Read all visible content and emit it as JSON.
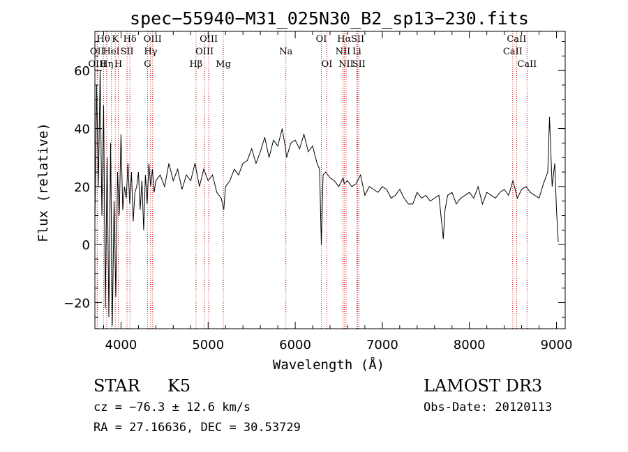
{
  "chart_data": {
    "type": "line",
    "title": "spec−55940−M31_025N30_B2_sp13−230.fits",
    "xlabel": "Wavelength (Å)",
    "ylabel": "Flux (relative)",
    "xlim": [
      3700,
      9100
    ],
    "ylim": [
      -29,
      73.5
    ],
    "x_ticks": [
      4000,
      5000,
      6000,
      7000,
      8000,
      9000
    ],
    "y_ticks": [
      -20,
      0,
      20,
      40,
      60
    ],
    "y_tick_labels": [
      "−20",
      "0",
      "20",
      "40",
      "60"
    ],
    "series": [
      {
        "name": "flux",
        "x": [
          3700,
          3720,
          3740,
          3760,
          3780,
          3800,
          3820,
          3840,
          3860,
          3880,
          3900,
          3920,
          3940,
          3960,
          3980,
          4000,
          4020,
          4040,
          4060,
          4080,
          4100,
          4120,
          4140,
          4160,
          4180,
          4200,
          4220,
          4240,
          4260,
          4280,
          4300,
          4320,
          4340,
          4360,
          4380,
          4400,
          4450,
          4500,
          4550,
          4600,
          4650,
          4700,
          4750,
          4800,
          4850,
          4900,
          4950,
          5000,
          5050,
          5100,
          5150,
          5180,
          5200,
          5250,
          5300,
          5350,
          5400,
          5450,
          5500,
          5550,
          5600,
          5650,
          5700,
          5750,
          5800,
          5850,
          5890,
          5900,
          5950,
          6000,
          6050,
          6100,
          6150,
          6200,
          6250,
          6280,
          6300,
          6320,
          6350,
          6400,
          6450,
          6500,
          6550,
          6563,
          6600,
          6650,
          6700,
          6750,
          6800,
          6850,
          6900,
          6950,
          7000,
          7050,
          7100,
          7150,
          7200,
          7250,
          7300,
          7350,
          7400,
          7450,
          7500,
          7550,
          7600,
          7650,
          7700,
          7720,
          7750,
          7800,
          7850,
          7900,
          7950,
          8000,
          8050,
          8100,
          8150,
          8200,
          8250,
          8300,
          8350,
          8400,
          8450,
          8500,
          8550,
          8600,
          8650,
          8700,
          8750,
          8800,
          8850,
          8900,
          8920,
          8950,
          8980,
          9000,
          9020
        ],
        "values": [
          8,
          55,
          20,
          60,
          10,
          48,
          -22,
          30,
          -25,
          35,
          -28,
          15,
          -18,
          25,
          10,
          38,
          12,
          20,
          16,
          28,
          14,
          25,
          8,
          18,
          20,
          25,
          12,
          22,
          5,
          24,
          14,
          28,
          20,
          26,
          18,
          22,
          24,
          20,
          28,
          22,
          26,
          19,
          24,
          22,
          28,
          20,
          26,
          22,
          24,
          18,
          16,
          12,
          20,
          22,
          26,
          24,
          28,
          29,
          33,
          28,
          32,
          37,
          30,
          36,
          34,
          40,
          33,
          30,
          35,
          36,
          33,
          38,
          32,
          34,
          28,
          26,
          0,
          24,
          25,
          23,
          22,
          20,
          23,
          21,
          22,
          20,
          21,
          24,
          17,
          20,
          19,
          18,
          20,
          19,
          16,
          17,
          19,
          16,
          14,
          14,
          18,
          16,
          17,
          15,
          16,
          17,
          2,
          12,
          17,
          18,
          14,
          16,
          17,
          18,
          16,
          20,
          14,
          18,
          17,
          16,
          18,
          19,
          17,
          22,
          16,
          19,
          20,
          18,
          17,
          16,
          21,
          25,
          44,
          20,
          28,
          12,
          1
        ]
      }
    ],
    "line_markers": [
      {
        "label": "Hθ",
        "wavelength": 3798,
        "row": 1
      },
      {
        "label": "OII",
        "wavelength": 3727,
        "row": 2
      },
      {
        "label": "Hη",
        "wavelength": 3835,
        "row": 3
      },
      {
        "label": "OIII",
        "wavelength": 3727,
        "row": 3
      },
      {
        "label": "HeI",
        "wavelength": 3889,
        "row": 2
      },
      {
        "label": "K",
        "wavelength": 3934,
        "row": 1
      },
      {
        "label": "H",
        "wavelength": 3969,
        "row": 3
      },
      {
        "label": "SII",
        "wavelength": 4069,
        "row": 2
      },
      {
        "label": "Hδ",
        "wavelength": 4102,
        "row": 1
      },
      {
        "label": "OIII",
        "wavelength": 4363,
        "row": 1
      },
      {
        "label": "Hγ",
        "wavelength": 4340,
        "row": 2
      },
      {
        "label": "G",
        "wavelength": 4304,
        "row": 3
      },
      {
        "label": "OIII",
        "wavelength": 5007,
        "row": 1
      },
      {
        "label": "OIII",
        "wavelength": 4959,
        "row": 2
      },
      {
        "label": "Hβ",
        "wavelength": 4861,
        "row": 3
      },
      {
        "label": "Mg",
        "wavelength": 5175,
        "row": 3
      },
      {
        "label": "Na",
        "wavelength": 5893,
        "row": 2
      },
      {
        "label": "OI",
        "wavelength": 6300,
        "row": 1
      },
      {
        "label": "OI",
        "wavelength": 6364,
        "row": 3
      },
      {
        "label": "Hα",
        "wavelength": 6563,
        "row": 1
      },
      {
        "label": "SII",
        "wavelength": 6717,
        "row": 1
      },
      {
        "label": "NII",
        "wavelength": 6548,
        "row": 2
      },
      {
        "label": "Li",
        "wavelength": 6708,
        "row": 2
      },
      {
        "label": "NII",
        "wavelength": 6584,
        "row": 3
      },
      {
        "label": "SII",
        "wavelength": 6731,
        "row": 3
      },
      {
        "label": "CaII",
        "wavelength": 8542,
        "row": 1
      },
      {
        "label": "CaII",
        "wavelength": 8498,
        "row": 2
      },
      {
        "label": "CaII",
        "wavelength": 8662,
        "row": 3
      }
    ],
    "marker_color": "#cc0000"
  },
  "info": {
    "object_class": "STAR",
    "subclass": "K5",
    "survey": "LAMOST DR3",
    "redshift_line": "cz = −76.3 ± 12.6 km/s",
    "obs_date": "Obs-Date: 20120113",
    "coords": "RA =  27.16636, DEC =  30.53729"
  }
}
